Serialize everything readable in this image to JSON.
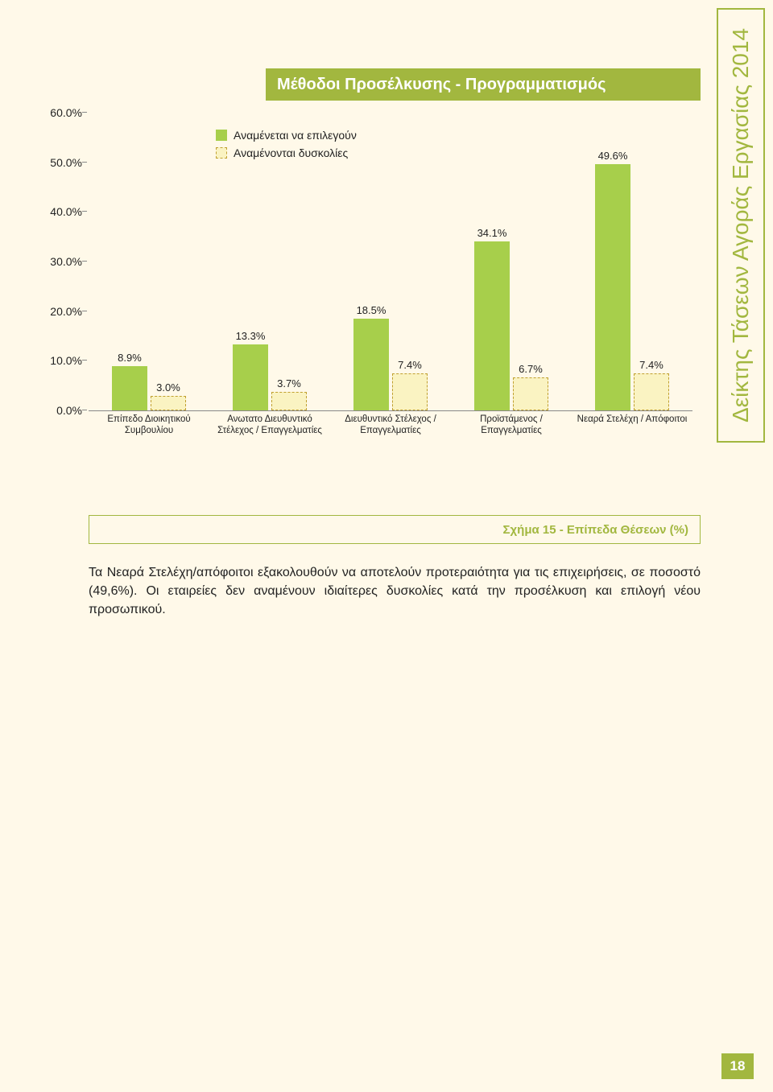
{
  "page": {
    "background_color": "#fff9e9",
    "number": "18",
    "number_bg": "#a2b73f",
    "sidebar_title": "Δείκτης Τάσεων Αγοράς Εργασίας 2014",
    "sidebar_color": "#a2b73f",
    "sidebar_box_border": "#a2b73f"
  },
  "header": {
    "text": "Μέθοδοι Προσέλκυσης - Προγραμματισμός",
    "bg": "#a2b73f",
    "text_color": "#ffffff"
  },
  "chart": {
    "type": "grouped-bar",
    "ylim": [
      0,
      60
    ],
    "ytick_step": 10,
    "ytick_labels": [
      "0.0%",
      "10.0%",
      "20.0%",
      "30.0%",
      "40.0%",
      "50.0%",
      "60.0%"
    ],
    "series": [
      {
        "key": "a",
        "label": "Αναμένεται να επιλεγούν",
        "fill": "#a7cf4b",
        "border": "#a7cf4b",
        "dash": "none"
      },
      {
        "key": "b",
        "label": "Αναμένονται δυσκολίες",
        "fill": "#faf3c2",
        "border": "#c0a030",
        "dash": "4 3"
      }
    ],
    "categories": [
      {
        "label": "Επίπεδο Διοικητικού Συμβουλίου",
        "a": 8.9,
        "a_label": "8.9%",
        "b": 3.0,
        "b_label": "3.0%"
      },
      {
        "label": "Ανωτατο Διευθυντικό Στέλεχος / Επαγγελματίες",
        "a": 13.3,
        "a_label": "13.3%",
        "b": 3.7,
        "b_label": "3.7%"
      },
      {
        "label": "Διευθυντικό Στέλεχος / Επαγγελματίες",
        "a": 18.5,
        "a_label": "18.5%",
        "b": 7.4,
        "b_label": "7.4%"
      },
      {
        "label": "Προϊστάμενος / Επαγγελματίες",
        "a": 34.1,
        "a_label": "34.1%",
        "b": 6.7,
        "b_label": "6.7%"
      },
      {
        "label": "Νεαρά Στελέχη / Απόφοιτοι",
        "a": 49.6,
        "a_label": "49.6%",
        "b": 7.4,
        "b_label": "7.4%"
      }
    ],
    "axis_color": "#888888",
    "label_fontsize": 13,
    "tick_fontsize": 14,
    "xlabel_fontsize": 11.5
  },
  "caption": {
    "text": "Σχήμα 15 - Επίπεδα Θέσεων (%)",
    "border_color": "#a2b73f",
    "text_color": "#a2b73f"
  },
  "body": {
    "paragraph": "Τα Νεαρά Στελέχη/απόφοιτοι εξακολουθούν να αποτελούν προτεραιότητα για τις επιχειρήσεις, σε ποσοστό (49,6%). Οι εταιρείες δεν αναμένουν ιδιαίτερες δυσκολίες κατά την προσέλκυση και επιλογή νέου προσωπικού."
  }
}
